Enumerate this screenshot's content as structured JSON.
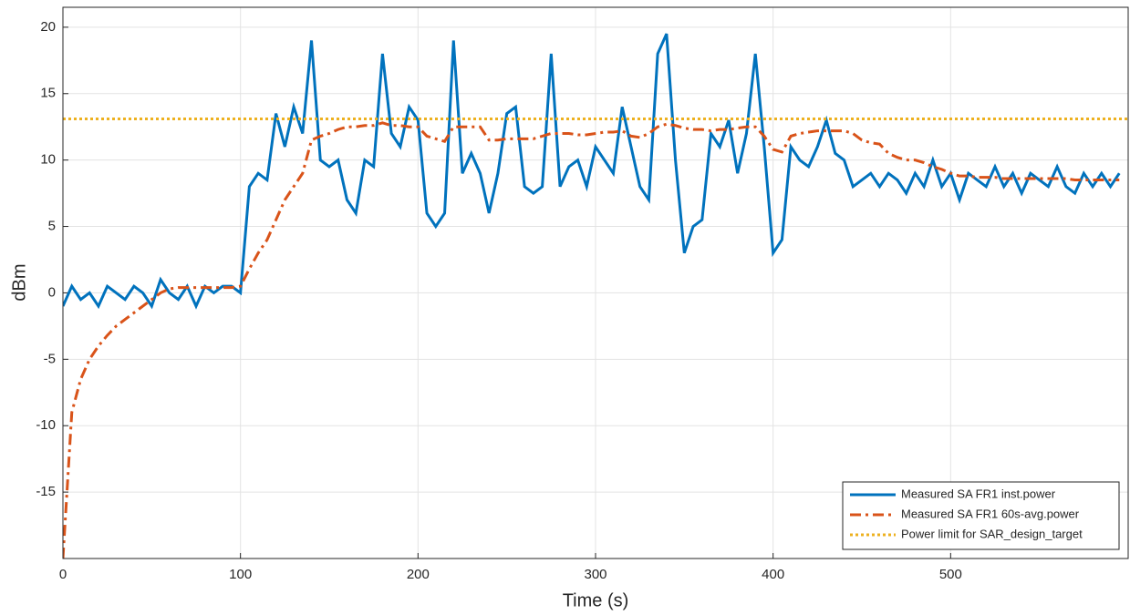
{
  "chart_data": {
    "type": "line",
    "x_label": "Time (s)",
    "y_label": "dBm",
    "x": [
      0,
      5,
      10,
      15,
      20,
      25,
      30,
      35,
      40,
      45,
      50,
      55,
      60,
      65,
      70,
      75,
      80,
      85,
      90,
      95,
      100,
      105,
      110,
      115,
      120,
      125,
      130,
      135,
      140,
      145,
      150,
      155,
      160,
      165,
      170,
      175,
      180,
      185,
      190,
      195,
      200,
      205,
      210,
      215,
      220,
      225,
      230,
      235,
      240,
      245,
      250,
      255,
      260,
      265,
      270,
      275,
      280,
      285,
      290,
      295,
      300,
      305,
      310,
      315,
      320,
      325,
      330,
      335,
      340,
      345,
      350,
      355,
      360,
      365,
      370,
      375,
      380,
      385,
      390,
      395,
      400,
      405,
      410,
      415,
      420,
      425,
      430,
      435,
      440,
      445,
      450,
      455,
      460,
      465,
      470,
      475,
      480,
      485,
      490,
      495,
      500,
      505,
      510,
      515,
      520,
      525,
      530,
      535,
      540,
      545,
      550,
      555,
      560,
      565,
      570,
      575,
      580,
      585,
      590,
      595
    ],
    "series": [
      {
        "name": "Measured SA FR1 inst.power",
        "color": "#0072BD",
        "style": "solid",
        "values": [
          -1,
          0.5,
          -0.5,
          0,
          -1,
          0.5,
          0,
          -0.5,
          0.5,
          0,
          -1,
          1,
          0,
          -0.5,
          0.5,
          -1,
          0.5,
          0,
          0.5,
          0.5,
          0,
          8,
          9,
          8.5,
          13.5,
          11,
          14,
          12,
          19,
          10,
          9.5,
          10,
          7,
          6,
          10,
          9.5,
          18,
          12,
          11,
          14,
          13,
          6,
          5,
          6,
          19,
          9,
          10.5,
          9,
          6,
          9,
          13.5,
          14,
          8,
          7.5,
          8,
          18,
          8,
          9.5,
          10,
          8,
          11,
          10,
          9,
          14,
          11,
          8,
          7,
          18,
          19.5,
          10,
          3,
          5,
          5.5,
          12,
          11,
          13,
          9,
          12,
          18,
          11,
          3,
          4,
          11,
          10,
          9.5,
          11,
          13,
          10.5,
          10,
          8,
          8.5,
          9,
          8,
          9,
          8.5,
          7.5,
          9,
          8,
          10,
          8,
          9,
          7,
          9,
          8.5,
          8,
          9.5,
          8,
          9,
          7.5,
          9,
          8.5,
          8,
          9.5,
          8,
          7.5,
          9,
          8,
          9,
          8,
          9
        ]
      },
      {
        "name": "Measured SA FR1 60s-avg.power",
        "color": "#D95319",
        "style": "dashdot",
        "values": [
          -20,
          -9,
          -6.5,
          -5,
          -4,
          -3.2,
          -2.5,
          -2,
          -1.5,
          -1,
          -0.5,
          0,
          0.3,
          0.4,
          0.4,
          0.4,
          0.4,
          0.4,
          0.4,
          0.4,
          0.5,
          1.8,
          3,
          4,
          5.5,
          7,
          8,
          9,
          11.5,
          11.8,
          12,
          12.3,
          12.5,
          12.5,
          12.6,
          12.6,
          12.8,
          12.6,
          12.6,
          12.5,
          12.5,
          11.8,
          11.6,
          11.4,
          12.5,
          12.5,
          12.5,
          12.5,
          11.5,
          11.5,
          11.6,
          11.6,
          11.6,
          11.6,
          11.8,
          12,
          12,
          12,
          11.9,
          11.9,
          12,
          12.1,
          12.1,
          12.2,
          11.8,
          11.7,
          12,
          12.5,
          12.7,
          12.6,
          12.4,
          12.3,
          12.3,
          12.2,
          12.3,
          12.3,
          12.4,
          12.5,
          12.5,
          11.8,
          10.8,
          10.6,
          11.8,
          12,
          12.1,
          12.2,
          12.2,
          12.2,
          12.2,
          12,
          11.5,
          11.3,
          11.2,
          10.5,
          10.2,
          10,
          10,
          9.8,
          9.5,
          9.3,
          9,
          8.8,
          8.8,
          8.7,
          8.7,
          8.7,
          8.6,
          8.6,
          8.6,
          8.6,
          8.6,
          8.6,
          8.6,
          8.6,
          8.5,
          8.5,
          8.5,
          8.5,
          8.5,
          8.5
        ]
      },
      {
        "name": "Power limit for SAR_design_target",
        "color": "#EDB120",
        "style": "dotted",
        "x": [
          0,
          600
        ],
        "values": [
          13.1,
          13.1
        ]
      }
    ],
    "xlim": [
      0,
      600
    ],
    "xticks": [
      0,
      100,
      200,
      300,
      400,
      500
    ],
    "ylim": [
      -20,
      21.5
    ],
    "yticks": [
      -15,
      -10,
      -5,
      0,
      5,
      10,
      15,
      20
    ],
    "grid": true,
    "legend": "bottom-right"
  }
}
